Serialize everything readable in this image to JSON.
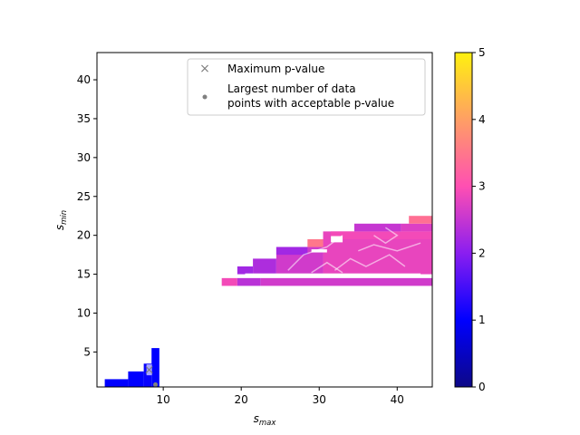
{
  "chart_data": {
    "type": "heatmap",
    "xlabel": "s",
    "xlabel_sub": "max",
    "ylabel": "s",
    "ylabel_sub": "min",
    "xlim": [
      1.5,
      44.5
    ],
    "ylim": [
      0.5,
      43.5
    ],
    "xticks": [
      10,
      20,
      30,
      40
    ],
    "yticks": [
      5,
      10,
      15,
      20,
      25,
      30,
      35,
      40
    ],
    "colorbar": {
      "colormap": "plasma",
      "range": [
        0,
        5
      ],
      "ticks": [
        0,
        1,
        2,
        3,
        4,
        5
      ]
    },
    "cells": [
      {
        "xmin": 2.5,
        "xmax": 5.5,
        "ymin": 0.5,
        "ymax": 1.5,
        "value": 1.0
      },
      {
        "xmin": 5.5,
        "xmax": 7.5,
        "ymin": 0.5,
        "ymax": 2.5,
        "value": 1.0
      },
      {
        "xmin": 7.5,
        "xmax": 8.5,
        "ymin": 0.5,
        "ymax": 3.5,
        "value": 1.05
      },
      {
        "xmin": 8.5,
        "xmax": 9.5,
        "ymin": 0.5,
        "ymax": 5.5,
        "value": 1.0
      },
      {
        "xmin": 17.5,
        "xmax": 19.5,
        "ymin": 13.5,
        "ymax": 14.5,
        "value": 2.9
      },
      {
        "xmin": 19.5,
        "xmax": 22.5,
        "ymin": 13.5,
        "ymax": 14.5,
        "value": 2.4
      },
      {
        "xmin": 22.5,
        "xmax": 44.5,
        "ymin": 13.5,
        "ymax": 14.5,
        "value": 2.6
      },
      {
        "xmin": 19.5,
        "xmax": 21.5,
        "ymin": 15,
        "ymax": 16,
        "value": 2.2
      },
      {
        "xmin": 21.5,
        "xmax": 24.5,
        "ymin": 15,
        "ymax": 17,
        "value": 2.3
      },
      {
        "xmin": 24.5,
        "xmax": 30.5,
        "ymin": 15,
        "ymax": 18.5,
        "value": 2.6
      },
      {
        "xmin": 30.5,
        "xmax": 44.5,
        "ymin": 15,
        "ymax": 20.5,
        "value": 2.8
      },
      {
        "xmin": 24.5,
        "xmax": 28.5,
        "ymin": 17.5,
        "ymax": 18.5,
        "value": 2.2
      },
      {
        "xmin": 28.5,
        "xmax": 30.5,
        "ymin": 18.5,
        "ymax": 19.5,
        "value": 3.5
      },
      {
        "xmin": 31.5,
        "xmax": 44.5,
        "ymin": 19.5,
        "ymax": 20.5,
        "value": 2.9
      },
      {
        "xmin": 34.5,
        "xmax": 40.5,
        "ymin": 20.5,
        "ymax": 21.5,
        "value": 2.5
      },
      {
        "xmin": 40.5,
        "xmax": 44.5,
        "ymin": 20.5,
        "ymax": 21.5,
        "value": 2.7
      },
      {
        "xmin": 41.5,
        "xmax": 44.5,
        "ymin": 21.5,
        "ymax": 22.5,
        "value": 3.4
      }
    ],
    "markers": {
      "max_p_value": {
        "x": 8.2,
        "y": 2.8
      },
      "largest_number": {
        "x": 9.0,
        "y": 0.8
      }
    },
    "legend": {
      "placement": "top-right",
      "entries": [
        {
          "marker": "x",
          "label": "Maximum p-value"
        },
        {
          "marker": "dot",
          "label": "Largest number of data",
          "label2": "points with acceptable p-value"
        }
      ]
    }
  }
}
